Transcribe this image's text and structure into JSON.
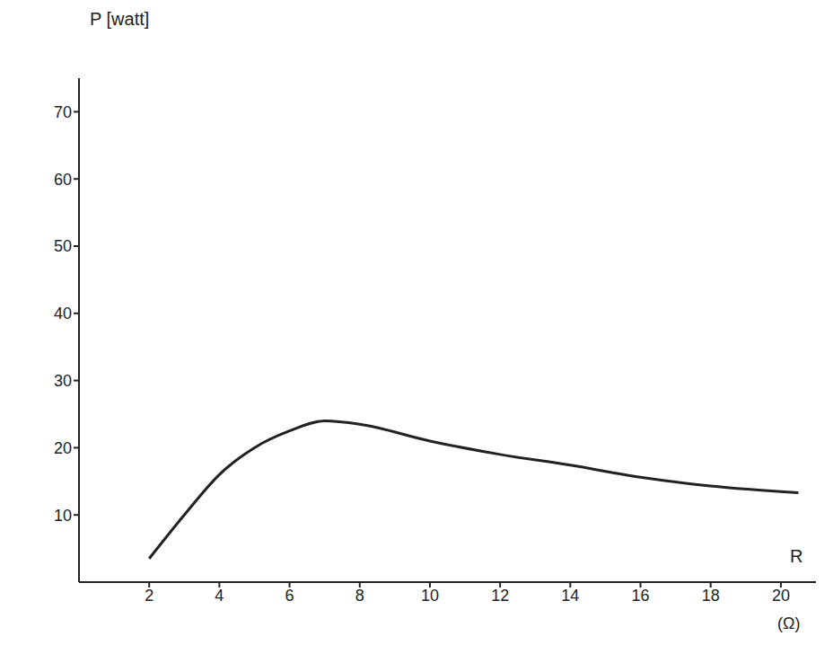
{
  "chart_data": {
    "type": "line",
    "y_label": "P [watt]",
    "x_label": "R",
    "x_unit": "(Ω)",
    "x": [
      2,
      3,
      4,
      5,
      6,
      7,
      8,
      10,
      12,
      14,
      16,
      18,
      20.5
    ],
    "values": [
      3.5,
      10,
      16,
      20,
      22.5,
      24,
      23.5,
      21,
      19,
      17.4,
      15.6,
      14.3,
      13.3
    ],
    "color": "#222222",
    "line_style": "solid",
    "marker": "none",
    "xlim": [
      0,
      21
    ],
    "xticks": [
      2,
      4,
      6,
      8,
      10,
      12,
      14,
      16,
      18,
      20
    ],
    "ylim": [
      0,
      75
    ],
    "yticks": [
      10,
      20,
      30,
      40,
      50,
      60,
      70
    ],
    "grid": false
  }
}
